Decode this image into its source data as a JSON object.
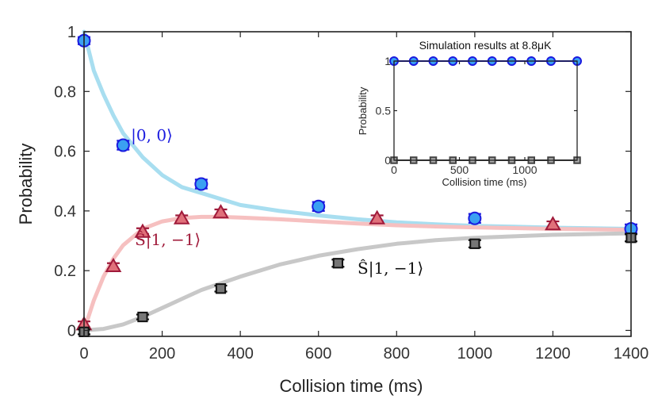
{
  "chart_data": [
    {
      "type": "scatter",
      "title": "",
      "xlabel": "Collision time (ms)",
      "ylabel": "Probability",
      "xlim": [
        0,
        1400
      ],
      "ylim": [
        -0.02,
        1.0
      ],
      "xticks": [
        0,
        200,
        400,
        600,
        800,
        1000,
        1200,
        1400
      ],
      "yticks": [
        0,
        0.2,
        0.4,
        0.6,
        0.8,
        1
      ],
      "xtick_labels": [
        "0",
        "200",
        "400",
        "600",
        "800",
        "1000",
        "1200",
        "1400"
      ],
      "ytick_labels": [
        "0",
        "0.2",
        "0.4",
        "0.6",
        "0.8",
        "1"
      ],
      "series": [
        {
          "name": "|0, 0⟩",
          "label": "|0, 0⟩",
          "color": "#1a1adf",
          "fill": "#3aa0f2",
          "marker": "circle",
          "x": [
            0,
            100,
            300,
            600,
            1000,
            1400
          ],
          "y": [
            0.97,
            0.62,
            0.49,
            0.415,
            0.375,
            0.34
          ],
          "err": [
            0.012,
            0.015,
            0.015,
            0.015,
            0.015,
            0.015
          ]
        },
        {
          "name": "Ŝ|1, −1⟩ (red)",
          "label": "Ŝ|1, −1⟩",
          "color": "#a01a3a",
          "fill": "#e0707a",
          "marker": "triangle",
          "x": [
            0,
            75,
            150,
            250,
            350,
            750,
            1200
          ],
          "y": [
            0.02,
            0.215,
            0.33,
            0.375,
            0.395,
            0.375,
            0.355
          ],
          "err": [
            0.01,
            0.01,
            0.012,
            0.01,
            0.01,
            0.01,
            0.01
          ]
        },
        {
          "name": "Ŝ|1, −1⟩ (black)",
          "label": "Ŝ|1, −1⟩",
          "color": "#111111",
          "fill": "#777777",
          "marker": "square",
          "x": [
            0,
            150,
            350,
            650,
            1000,
            1400
          ],
          "y": [
            -0.005,
            0.045,
            0.14,
            0.225,
            0.29,
            0.31
          ],
          "err": [
            0.008,
            0.008,
            0.01,
            0.012,
            0.012,
            0.012
          ]
        }
      ],
      "fits": [
        {
          "name": "|0, 0⟩ fit",
          "color": "#a8def0",
          "x": [
            0,
            25,
            50,
            75,
            100,
            150,
            200,
            250,
            300,
            400,
            500,
            600,
            700,
            800,
            900,
            1000,
            1100,
            1200,
            1300,
            1400
          ],
          "y": [
            1.0,
            0.87,
            0.79,
            0.72,
            0.66,
            0.58,
            0.52,
            0.48,
            0.46,
            0.42,
            0.4,
            0.385,
            0.372,
            0.362,
            0.355,
            0.35,
            0.347,
            0.344,
            0.342,
            0.34
          ]
        },
        {
          "name": "red fit",
          "color": "#f6c0c0",
          "x": [
            0,
            25,
            50,
            75,
            100,
            150,
            200,
            250,
            300,
            350,
            400,
            500,
            600,
            700,
            800,
            900,
            1000,
            1200,
            1400
          ],
          "y": [
            0.0,
            0.1,
            0.18,
            0.24,
            0.285,
            0.34,
            0.365,
            0.376,
            0.38,
            0.38,
            0.378,
            0.372,
            0.365,
            0.358,
            0.352,
            0.348,
            0.345,
            0.34,
            0.337
          ]
        },
        {
          "name": "black fit",
          "color": "#c8c8c8",
          "x": [
            0,
            50,
            100,
            150,
            200,
            250,
            300,
            400,
            500,
            600,
            700,
            800,
            900,
            1000,
            1200,
            1400
          ],
          "y": [
            0.0,
            0.005,
            0.02,
            0.045,
            0.075,
            0.105,
            0.135,
            0.18,
            0.22,
            0.25,
            0.272,
            0.29,
            0.302,
            0.31,
            0.32,
            0.325
          ]
        }
      ],
      "annotations": [
        {
          "text": "|0, 0⟩",
          "color": "#1a1adf",
          "x": 120,
          "y": 0.635
        },
        {
          "text": "Ŝ|1, −1⟩",
          "color": "#a01a3a",
          "x": 130,
          "y": 0.285
        },
        {
          "text": "Ŝ|1, −1⟩",
          "color": "#111111",
          "x": 700,
          "y": 0.19
        }
      ]
    },
    {
      "type": "line",
      "title": "Simulation results at 8.8μK",
      "xlabel": "Collision time (ms)",
      "ylabel": "Probability",
      "xlim": [
        0,
        1400
      ],
      "ylim": [
        0,
        1
      ],
      "xticks": [
        0,
        500,
        1000
      ],
      "yticks": [
        0,
        0.5,
        1
      ],
      "xtick_labels": [
        "0",
        "500",
        "1000"
      ],
      "ytick_labels": [
        "0",
        "0.5",
        "1"
      ],
      "series": [
        {
          "name": "|0,0⟩ simulation",
          "color": "#1a1adf",
          "fill": "#3aa0f2",
          "marker": "circle",
          "x": [
            0,
            150,
            300,
            450,
            600,
            750,
            900,
            1050,
            1200,
            1400
          ],
          "y": [
            1,
            1,
            1,
            1,
            1,
            1,
            1,
            1,
            1,
            1
          ]
        },
        {
          "name": "red simulation",
          "color": "#a01a3a",
          "fill": "#e0707a",
          "marker": "none",
          "x": [
            0,
            1400
          ],
          "y": [
            0,
            0
          ]
        },
        {
          "name": "black simulation",
          "color": "#444444",
          "fill": "#aaaaaa",
          "marker": "square",
          "x": [
            0,
            150,
            300,
            450,
            600,
            750,
            900,
            1050,
            1200,
            1400
          ],
          "y": [
            0,
            0,
            0,
            0,
            0,
            0,
            0,
            0,
            0,
            0
          ]
        }
      ]
    }
  ]
}
